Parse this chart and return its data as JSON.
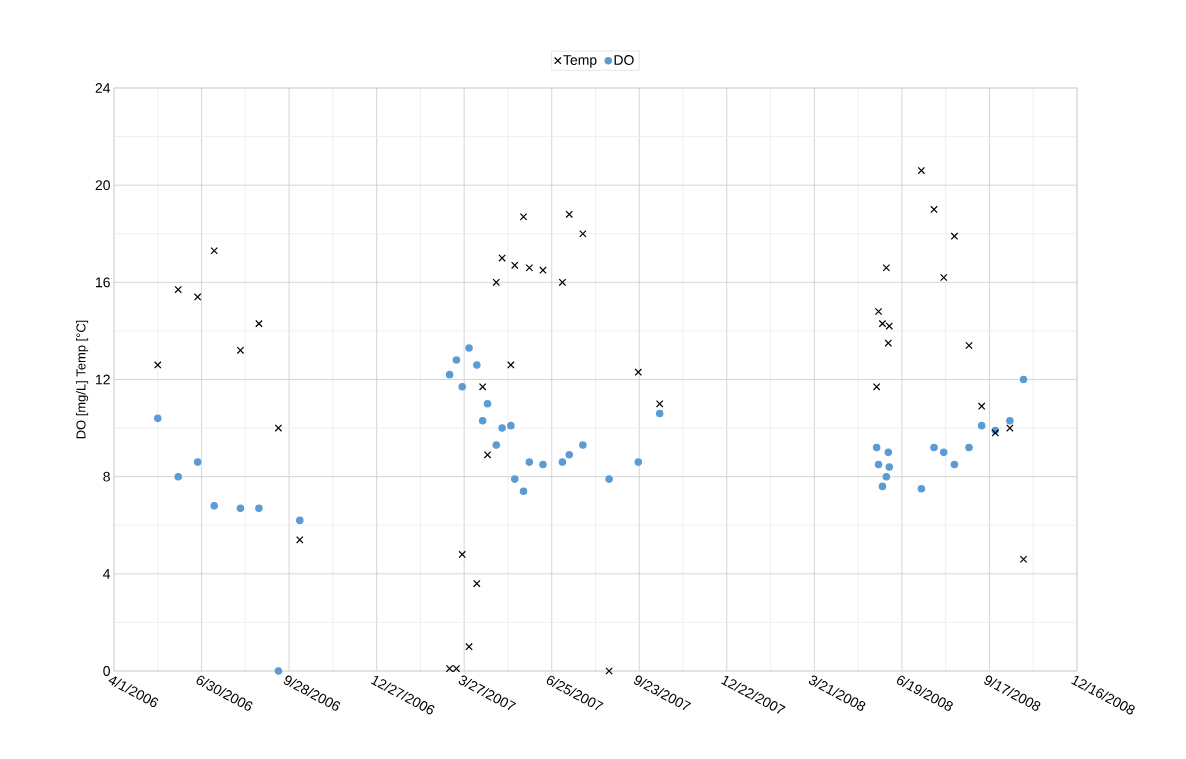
{
  "chart_data": {
    "type": "scatter",
    "ylabel": "DO [mg/L]    Temp [°C]",
    "x": [
      "2006-05-16",
      "2006-06-06",
      "2006-06-26",
      "2006-07-13",
      "2006-08-09",
      "2006-08-28",
      "2006-09-17",
      "2006-10-09",
      "2007-03-12",
      "2007-03-19",
      "2007-03-25",
      "2007-04-01",
      "2007-04-09",
      "2007-04-15",
      "2007-04-20",
      "2007-04-29",
      "2007-05-05",
      "2007-05-14",
      "2007-05-18",
      "2007-05-27",
      "2007-06-02",
      "2007-06-16",
      "2007-07-06",
      "2007-07-13",
      "2007-07-27",
      "2007-08-23",
      "2007-09-22",
      "2007-10-14",
      "2008-05-24",
      "2008-05-26",
      "2008-05-30",
      "2008-06-03",
      "2008-06-05",
      "2008-06-06",
      "2008-07-09",
      "2008-07-22",
      "2008-08-01",
      "2008-08-12",
      "2008-08-27",
      "2008-09-09",
      "2008-09-23",
      "2008-10-08",
      "2008-10-22"
    ],
    "series": [
      {
        "name": "Temp",
        "color": "#000000",
        "marker": "cross",
        "values": [
          12.6,
          15.7,
          15.4,
          17.3,
          13.2,
          14.3,
          10.0,
          5.4,
          0.1,
          0.1,
          4.8,
          1.0,
          3.6,
          11.7,
          8.9,
          16.0,
          17.0,
          12.6,
          16.7,
          18.7,
          16.6,
          16.5,
          16.0,
          18.8,
          18.0,
          0,
          12.3,
          11.0,
          11.7,
          14.8,
          14.3,
          16.6,
          13.5,
          14.2,
          20.6,
          19.0,
          16.2,
          17.9,
          13.4,
          10.9,
          9.8,
          10.0,
          4.6
        ]
      },
      {
        "name": "DO",
        "color": "#5b9bd5",
        "marker": "circle",
        "values": [
          10.4,
          8.0,
          8.6,
          6.8,
          6.7,
          6.7,
          0,
          6.2,
          12.2,
          12.8,
          11.7,
          13.3,
          12.6,
          10.3,
          11.0,
          9.3,
          10.0,
          10.1,
          7.9,
          7.4,
          8.6,
          8.5,
          8.6,
          8.9,
          9.3,
          7.9,
          8.6,
          10.6,
          9.2,
          8.5,
          7.6,
          8.0,
          9.0,
          8.4,
          7.5,
          9.2,
          9.0,
          8.5,
          9.2,
          10.1,
          9.9,
          10.3,
          12.0
        ]
      }
    ],
    "xlim": [
      "2006-04-01",
      "2008-12-16"
    ],
    "xticks": [
      {
        "value": "2006-04-01",
        "label": "4/1/2006"
      },
      {
        "value": "2006-06-30",
        "label": "6/30/2006"
      },
      {
        "value": "2006-09-28",
        "label": "9/28/2006"
      },
      {
        "value": "2006-12-27",
        "label": "12/27/2006"
      },
      {
        "value": "2007-03-27",
        "label": "3/27/2007"
      },
      {
        "value": "2007-06-25",
        "label": "6/25/2007"
      },
      {
        "value": "2007-09-23",
        "label": "9/23/2007"
      },
      {
        "value": "2007-12-22",
        "label": "12/22/2007"
      },
      {
        "value": "2008-03-21",
        "label": "3/21/2008"
      },
      {
        "value": "2008-06-19",
        "label": "6/19/2008"
      },
      {
        "value": "2008-09-17",
        "label": "9/17/2008"
      },
      {
        "value": "2008-12-16",
        "label": "12/16/2008"
      }
    ],
    "ylim": [
      0,
      24
    ],
    "yticks": [
      0,
      4,
      8,
      12,
      16,
      20,
      24
    ],
    "grid": true,
    "legend": "top"
  }
}
